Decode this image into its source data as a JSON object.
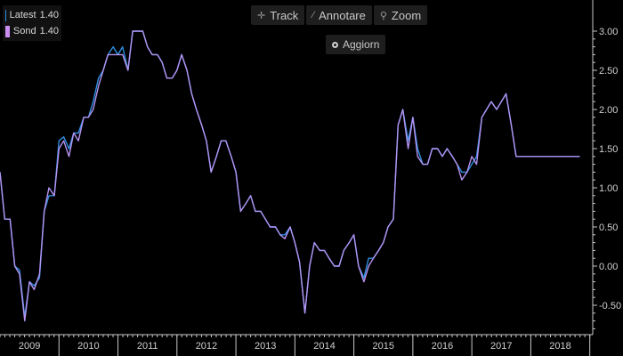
{
  "toolbar": {
    "track_label": "Track",
    "annotate_label": "Annotare",
    "zoom_label": "Zoom",
    "refresh_label": "Aggiorn",
    "track_icon": "crosshair-icon",
    "annotate_icon": "pencil-icon",
    "zoom_icon": "magnifier-icon"
  },
  "legend": {
    "items": [
      {
        "label": "Latest",
        "value": "1.40",
        "color": "#2f8fe0"
      },
      {
        "label": "Sond",
        "value": "1.40",
        "color": "#c98ef0"
      }
    ]
  },
  "colors": {
    "background": "#000000",
    "latest_line": "#2f8fe0",
    "sond_line": "#b593f2",
    "axis": "#c8c8c8"
  },
  "chart_data": {
    "type": "line",
    "title": "",
    "xlabel": "",
    "ylabel": "",
    "ylim": [
      -0.9,
      3.1
    ],
    "xlim": [
      2009.0,
      2019.05
    ],
    "yticks": [
      "3.00",
      "2.50",
      "2.00",
      "1.50",
      "1.00",
      "0.50",
      "0.00",
      "-0.50"
    ],
    "ytick_values": [
      3.0,
      2.5,
      2.0,
      1.5,
      1.0,
      0.5,
      0.0,
      -0.5
    ],
    "xticks": [
      "2009",
      "2010",
      "2011",
      "2012",
      "2013",
      "2014",
      "2015",
      "2016",
      "2017",
      "2018"
    ],
    "legend_position": "top-left",
    "grid": false,
    "series": [
      {
        "name": "Latest",
        "x": [
          2009.0,
          2009.08,
          2009.17,
          2009.25,
          2009.33,
          2009.42,
          2009.5,
          2009.58,
          2009.67,
          2009.75,
          2009.83,
          2009.92,
          2010.0,
          2010.08,
          2010.17,
          2010.25,
          2010.33,
          2010.42,
          2010.5,
          2010.58,
          2010.67,
          2010.75,
          2010.83,
          2010.92,
          2011.0,
          2011.08,
          2011.17,
          2011.25,
          2011.33,
          2011.42,
          2011.5,
          2011.58,
          2011.67,
          2011.75,
          2011.83,
          2011.92,
          2012.0,
          2012.08,
          2012.17,
          2012.25,
          2012.33,
          2012.42,
          2012.5,
          2012.58,
          2012.67,
          2012.75,
          2012.83,
          2012.92,
          2013.0,
          2013.08,
          2013.17,
          2013.25,
          2013.33,
          2013.42,
          2013.5,
          2013.58,
          2013.67,
          2013.75,
          2013.83,
          2013.92,
          2014.0,
          2014.08,
          2014.17,
          2014.25,
          2014.33,
          2014.42,
          2014.5,
          2014.58,
          2014.67,
          2014.75,
          2014.83,
          2014.92,
          2015.0,
          2015.08,
          2015.17,
          2015.25,
          2015.33,
          2015.42,
          2015.5,
          2015.58,
          2015.67,
          2015.75,
          2015.83,
          2015.92,
          2016.0,
          2016.08,
          2016.17,
          2016.25,
          2016.33,
          2016.42,
          2016.5,
          2016.58,
          2016.67,
          2016.75,
          2016.83,
          2016.92,
          2017.0,
          2017.08,
          2017.17,
          2017.25,
          2017.33,
          2017.42,
          2017.5,
          2017.58,
          2017.67,
          2017.75,
          2017.83,
          2017.92,
          2018.0,
          2018.08,
          2018.17,
          2018.25,
          2018.33,
          2018.42,
          2018.5,
          2018.58,
          2018.67,
          2018.75,
          2018.83
        ],
        "values": [
          1.2,
          0.6,
          0.6,
          0.0,
          -0.05,
          -0.65,
          -0.2,
          -0.25,
          -0.15,
          0.7,
          0.9,
          0.9,
          1.6,
          1.65,
          1.5,
          1.7,
          1.7,
          1.9,
          1.9,
          2.1,
          2.4,
          2.5,
          2.7,
          2.8,
          2.7,
          2.8,
          2.5,
          3.0,
          3.0,
          3.0,
          2.8,
          2.7,
          2.7,
          2.6,
          2.4,
          2.4,
          2.5,
          2.7,
          2.5,
          2.2,
          2.0,
          1.8,
          1.6,
          1.2,
          1.4,
          1.6,
          1.6,
          1.4,
          1.2,
          0.7,
          0.8,
          0.9,
          0.7,
          0.7,
          0.6,
          0.5,
          0.5,
          0.4,
          0.4,
          0.5,
          0.3,
          0.05,
          -0.6,
          0.0,
          0.3,
          0.2,
          0.2,
          0.1,
          0.0,
          0.0,
          0.2,
          0.3,
          0.4,
          0.0,
          -0.15,
          0.1,
          0.1,
          0.2,
          0.3,
          0.5,
          0.6,
          1.8,
          2.0,
          1.6,
          1.9,
          1.5,
          1.3,
          1.3,
          1.5,
          1.5,
          1.4,
          1.5,
          1.4,
          1.3,
          1.2,
          1.2,
          1.3,
          1.4,
          1.9,
          2.0,
          2.1,
          2.0,
          2.1,
          2.2,
          1.8,
          1.4,
          1.4,
          1.4,
          1.4,
          1.4,
          1.4,
          1.4,
          1.4,
          1.4,
          1.4,
          1.4,
          1.4,
          1.4,
          1.4
        ]
      },
      {
        "name": "Sond",
        "x": [
          2009.0,
          2009.08,
          2009.17,
          2009.25,
          2009.33,
          2009.42,
          2009.5,
          2009.58,
          2009.67,
          2009.75,
          2009.83,
          2009.92,
          2010.0,
          2010.08,
          2010.17,
          2010.25,
          2010.33,
          2010.42,
          2010.5,
          2010.58,
          2010.67,
          2010.75,
          2010.83,
          2010.92,
          2011.0,
          2011.08,
          2011.17,
          2011.25,
          2011.33,
          2011.42,
          2011.5,
          2011.58,
          2011.67,
          2011.75,
          2011.83,
          2011.92,
          2012.0,
          2012.08,
          2012.17,
          2012.25,
          2012.33,
          2012.42,
          2012.5,
          2012.58,
          2012.67,
          2012.75,
          2012.83,
          2012.92,
          2013.0,
          2013.08,
          2013.17,
          2013.25,
          2013.33,
          2013.42,
          2013.5,
          2013.58,
          2013.67,
          2013.75,
          2013.83,
          2013.92,
          2014.0,
          2014.08,
          2014.17,
          2014.25,
          2014.33,
          2014.42,
          2014.5,
          2014.58,
          2014.67,
          2014.75,
          2014.83,
          2014.92,
          2015.0,
          2015.08,
          2015.17,
          2015.25,
          2015.33,
          2015.42,
          2015.5,
          2015.58,
          2015.67,
          2015.75,
          2015.83,
          2015.92,
          2016.0,
          2016.08,
          2016.17,
          2016.25,
          2016.33,
          2016.42,
          2016.5,
          2016.58,
          2016.67,
          2016.75,
          2016.83,
          2016.92,
          2017.0,
          2017.08,
          2017.17,
          2017.25,
          2017.33,
          2017.42,
          2017.5,
          2017.58,
          2017.67,
          2017.75,
          2017.83,
          2017.92,
          2018.0,
          2018.08,
          2018.17,
          2018.25,
          2018.33,
          2018.42,
          2018.5,
          2018.58,
          2018.67,
          2018.75,
          2018.83
        ],
        "values": [
          1.2,
          0.6,
          0.6,
          0.0,
          -0.1,
          -0.7,
          -0.2,
          -0.3,
          -0.1,
          0.7,
          1.0,
          0.9,
          1.5,
          1.6,
          1.4,
          1.7,
          1.6,
          1.9,
          1.9,
          2.0,
          2.3,
          2.5,
          2.7,
          2.7,
          2.7,
          2.7,
          2.5,
          3.0,
          3.0,
          3.0,
          2.8,
          2.7,
          2.7,
          2.6,
          2.4,
          2.4,
          2.5,
          2.7,
          2.5,
          2.2,
          2.0,
          1.8,
          1.6,
          1.2,
          1.4,
          1.6,
          1.6,
          1.4,
          1.2,
          0.7,
          0.8,
          0.9,
          0.7,
          0.7,
          0.6,
          0.5,
          0.5,
          0.4,
          0.35,
          0.5,
          0.3,
          0.05,
          -0.6,
          0.0,
          0.3,
          0.2,
          0.2,
          0.1,
          0.0,
          0.0,
          0.2,
          0.3,
          0.4,
          0.0,
          -0.2,
          0.0,
          0.1,
          0.2,
          0.3,
          0.5,
          0.6,
          1.8,
          2.0,
          1.5,
          1.9,
          1.4,
          1.3,
          1.3,
          1.5,
          1.5,
          1.4,
          1.5,
          1.4,
          1.3,
          1.1,
          1.2,
          1.4,
          1.3,
          1.9,
          2.0,
          2.1,
          2.0,
          2.1,
          2.2,
          1.8,
          1.4,
          1.4,
          1.4,
          1.4,
          1.4,
          1.4,
          1.4,
          1.4,
          1.4,
          1.4,
          1.4,
          1.4,
          1.4,
          1.4
        ]
      }
    ]
  }
}
